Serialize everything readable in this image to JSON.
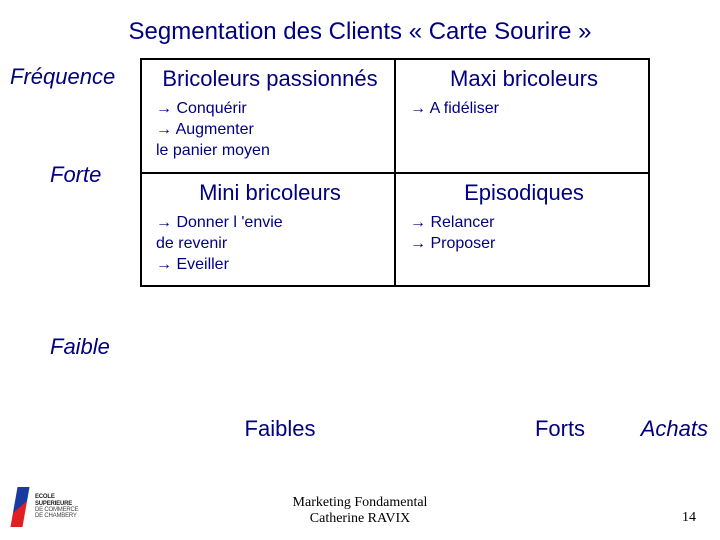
{
  "title": "Segmentation des Clients « Carte Sourire »",
  "axes": {
    "y_label": "Fréquence",
    "y_high": "Forte",
    "y_low": "Faible",
    "x_low": "Faibles",
    "x_high": "Forts",
    "x_label": "Achats"
  },
  "matrix": {
    "q1": {
      "title": "Bricoleurs passionnés",
      "action1": "  Conquérir",
      "action2": "  Augmenter",
      "action3": "le panier  moyen"
    },
    "q2": {
      "title": "Maxi bricoleurs",
      "action1": "  A fidéliser"
    },
    "q3": {
      "title": "Mini bricoleurs",
      "action1": "  Donner l 'envie",
      "action2": "de revenir",
      "action3": "  Eveiller"
    },
    "q4": {
      "title": "Episodiques",
      "action1": "  Relancer",
      "action2": "  Proposer"
    }
  },
  "footer": {
    "line1": "Marketing Fondamental",
    "line2": "Catherine RAVIX",
    "page": "14"
  },
  "logo": {
    "l1": "ECOLE",
    "l2": "SUPERIEURE",
    "l3": "DE COMMERCE",
    "l4": "DE CHAMBERY"
  },
  "colors": {
    "text": "#000080",
    "border": "#000000",
    "background": "#ffffff"
  }
}
